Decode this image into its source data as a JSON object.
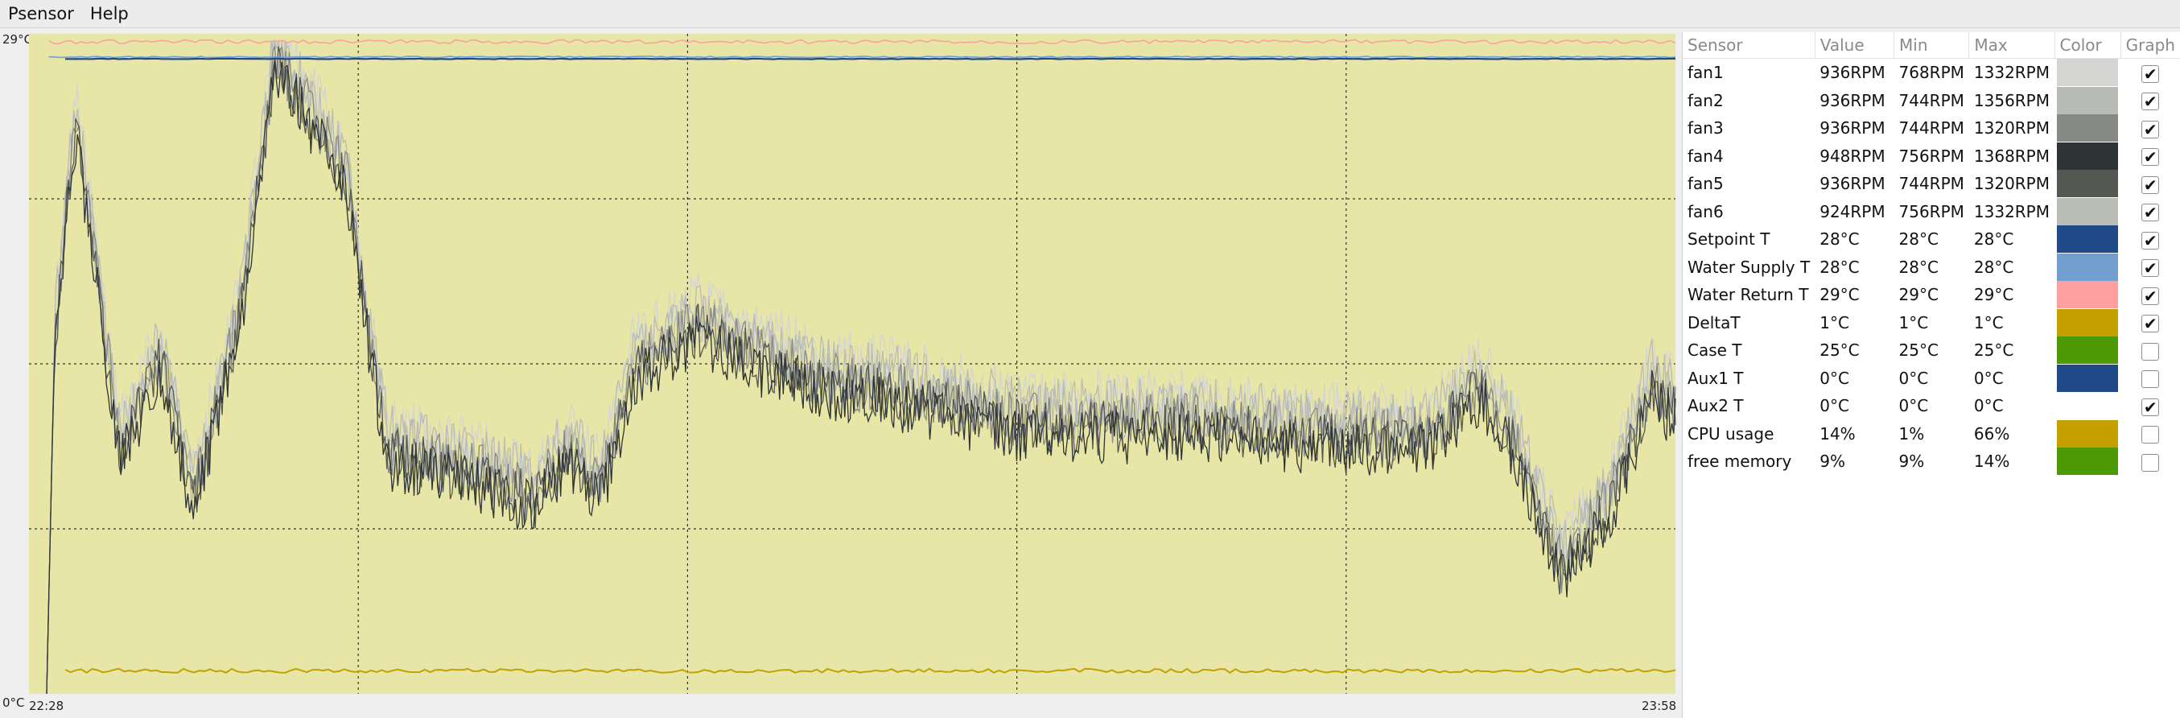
{
  "menubar": {
    "items": [
      "Psensor",
      "Help"
    ]
  },
  "graph": {
    "y_max_label": "29°C",
    "y_min_label": "0°C",
    "x_start_label": "22:28",
    "x_end_label": "23:58",
    "background": "#e8e6a6",
    "grid_color": "#333333"
  },
  "chart_data": {
    "type": "line",
    "x_range": [
      "22:28",
      "23:58"
    ],
    "series": [
      {
        "name": "fan1",
        "color": "#d4d5d2",
        "visible": true
      },
      {
        "name": "fan2",
        "color": "#b8bab6",
        "visible": true
      },
      {
        "name": "fan3",
        "color": "#878985",
        "visible": true
      },
      {
        "name": "fan4",
        "color": "#2e3436",
        "visible": true
      },
      {
        "name": "fan5",
        "color": "#555753",
        "visible": true
      },
      {
        "name": "fan6",
        "color": "#babdb6",
        "visible": true
      },
      {
        "name": "Setpoint T",
        "color": "#204a87",
        "visible": true
      },
      {
        "name": "Water Supply T",
        "color": "#729fcf",
        "visible": true
      },
      {
        "name": "Water Return T",
        "color": "#ff9f9f",
        "visible": true
      },
      {
        "name": "DeltaT",
        "color": "#c4a000",
        "visible": true
      }
    ]
  },
  "table": {
    "headers": {
      "sensor": "Sensor",
      "value": "Value",
      "min": "Min",
      "max": "Max",
      "color": "Color",
      "graph": "Graph"
    },
    "rows": [
      {
        "sensor": "fan1",
        "value": "936RPM",
        "min": "768RPM",
        "max": "1332RPM",
        "color": "#d4d5d2",
        "graph": true
      },
      {
        "sensor": "fan2",
        "value": "936RPM",
        "min": "744RPM",
        "max": "1356RPM",
        "color": "#b8bab6",
        "graph": true
      },
      {
        "sensor": "fan3",
        "value": "936RPM",
        "min": "744RPM",
        "max": "1320RPM",
        "color": "#878985",
        "graph": true
      },
      {
        "sensor": "fan4",
        "value": "948RPM",
        "min": "756RPM",
        "max": "1368RPM",
        "color": "#2e3436",
        "graph": true
      },
      {
        "sensor": "fan5",
        "value": "936RPM",
        "min": "744RPM",
        "max": "1320RPM",
        "color": "#555753",
        "graph": true
      },
      {
        "sensor": "fan6",
        "value": "924RPM",
        "min": "756RPM",
        "max": "1332RPM",
        "color": "#babdb6",
        "graph": true
      },
      {
        "sensor": "Setpoint T",
        "value": "28°C",
        "min": "28°C",
        "max": "28°C",
        "color": "#204a87",
        "graph": true
      },
      {
        "sensor": "Water Supply T",
        "value": "28°C",
        "min": "28°C",
        "max": "28°C",
        "color": "#729fcf",
        "graph": true
      },
      {
        "sensor": "Water Return T",
        "value": "29°C",
        "min": "29°C",
        "max": "29°C",
        "color": "#ff9f9f",
        "graph": true
      },
      {
        "sensor": "DeltaT",
        "value": "1°C",
        "min": "1°C",
        "max": "1°C",
        "color": "#c4a000",
        "graph": true
      },
      {
        "sensor": "Case T",
        "value": "25°C",
        "min": "25°C",
        "max": "25°C",
        "color": "#4e9a06",
        "graph": false
      },
      {
        "sensor": "Aux1 T",
        "value": "0°C",
        "min": "0°C",
        "max": "0°C",
        "color": "#204a87",
        "graph": false
      },
      {
        "sensor": "Aux2 T",
        "value": "0°C",
        "min": "0°C",
        "max": "0°C",
        "color": "#ffffff",
        "graph": true
      },
      {
        "sensor": "CPU usage",
        "value": "14%",
        "min": "1%",
        "max": "66%",
        "color": "#c4a000",
        "graph": false
      },
      {
        "sensor": "free memory",
        "value": "9%",
        "min": "9%",
        "max": "14%",
        "color": "#4e9a06",
        "graph": false
      }
    ]
  }
}
